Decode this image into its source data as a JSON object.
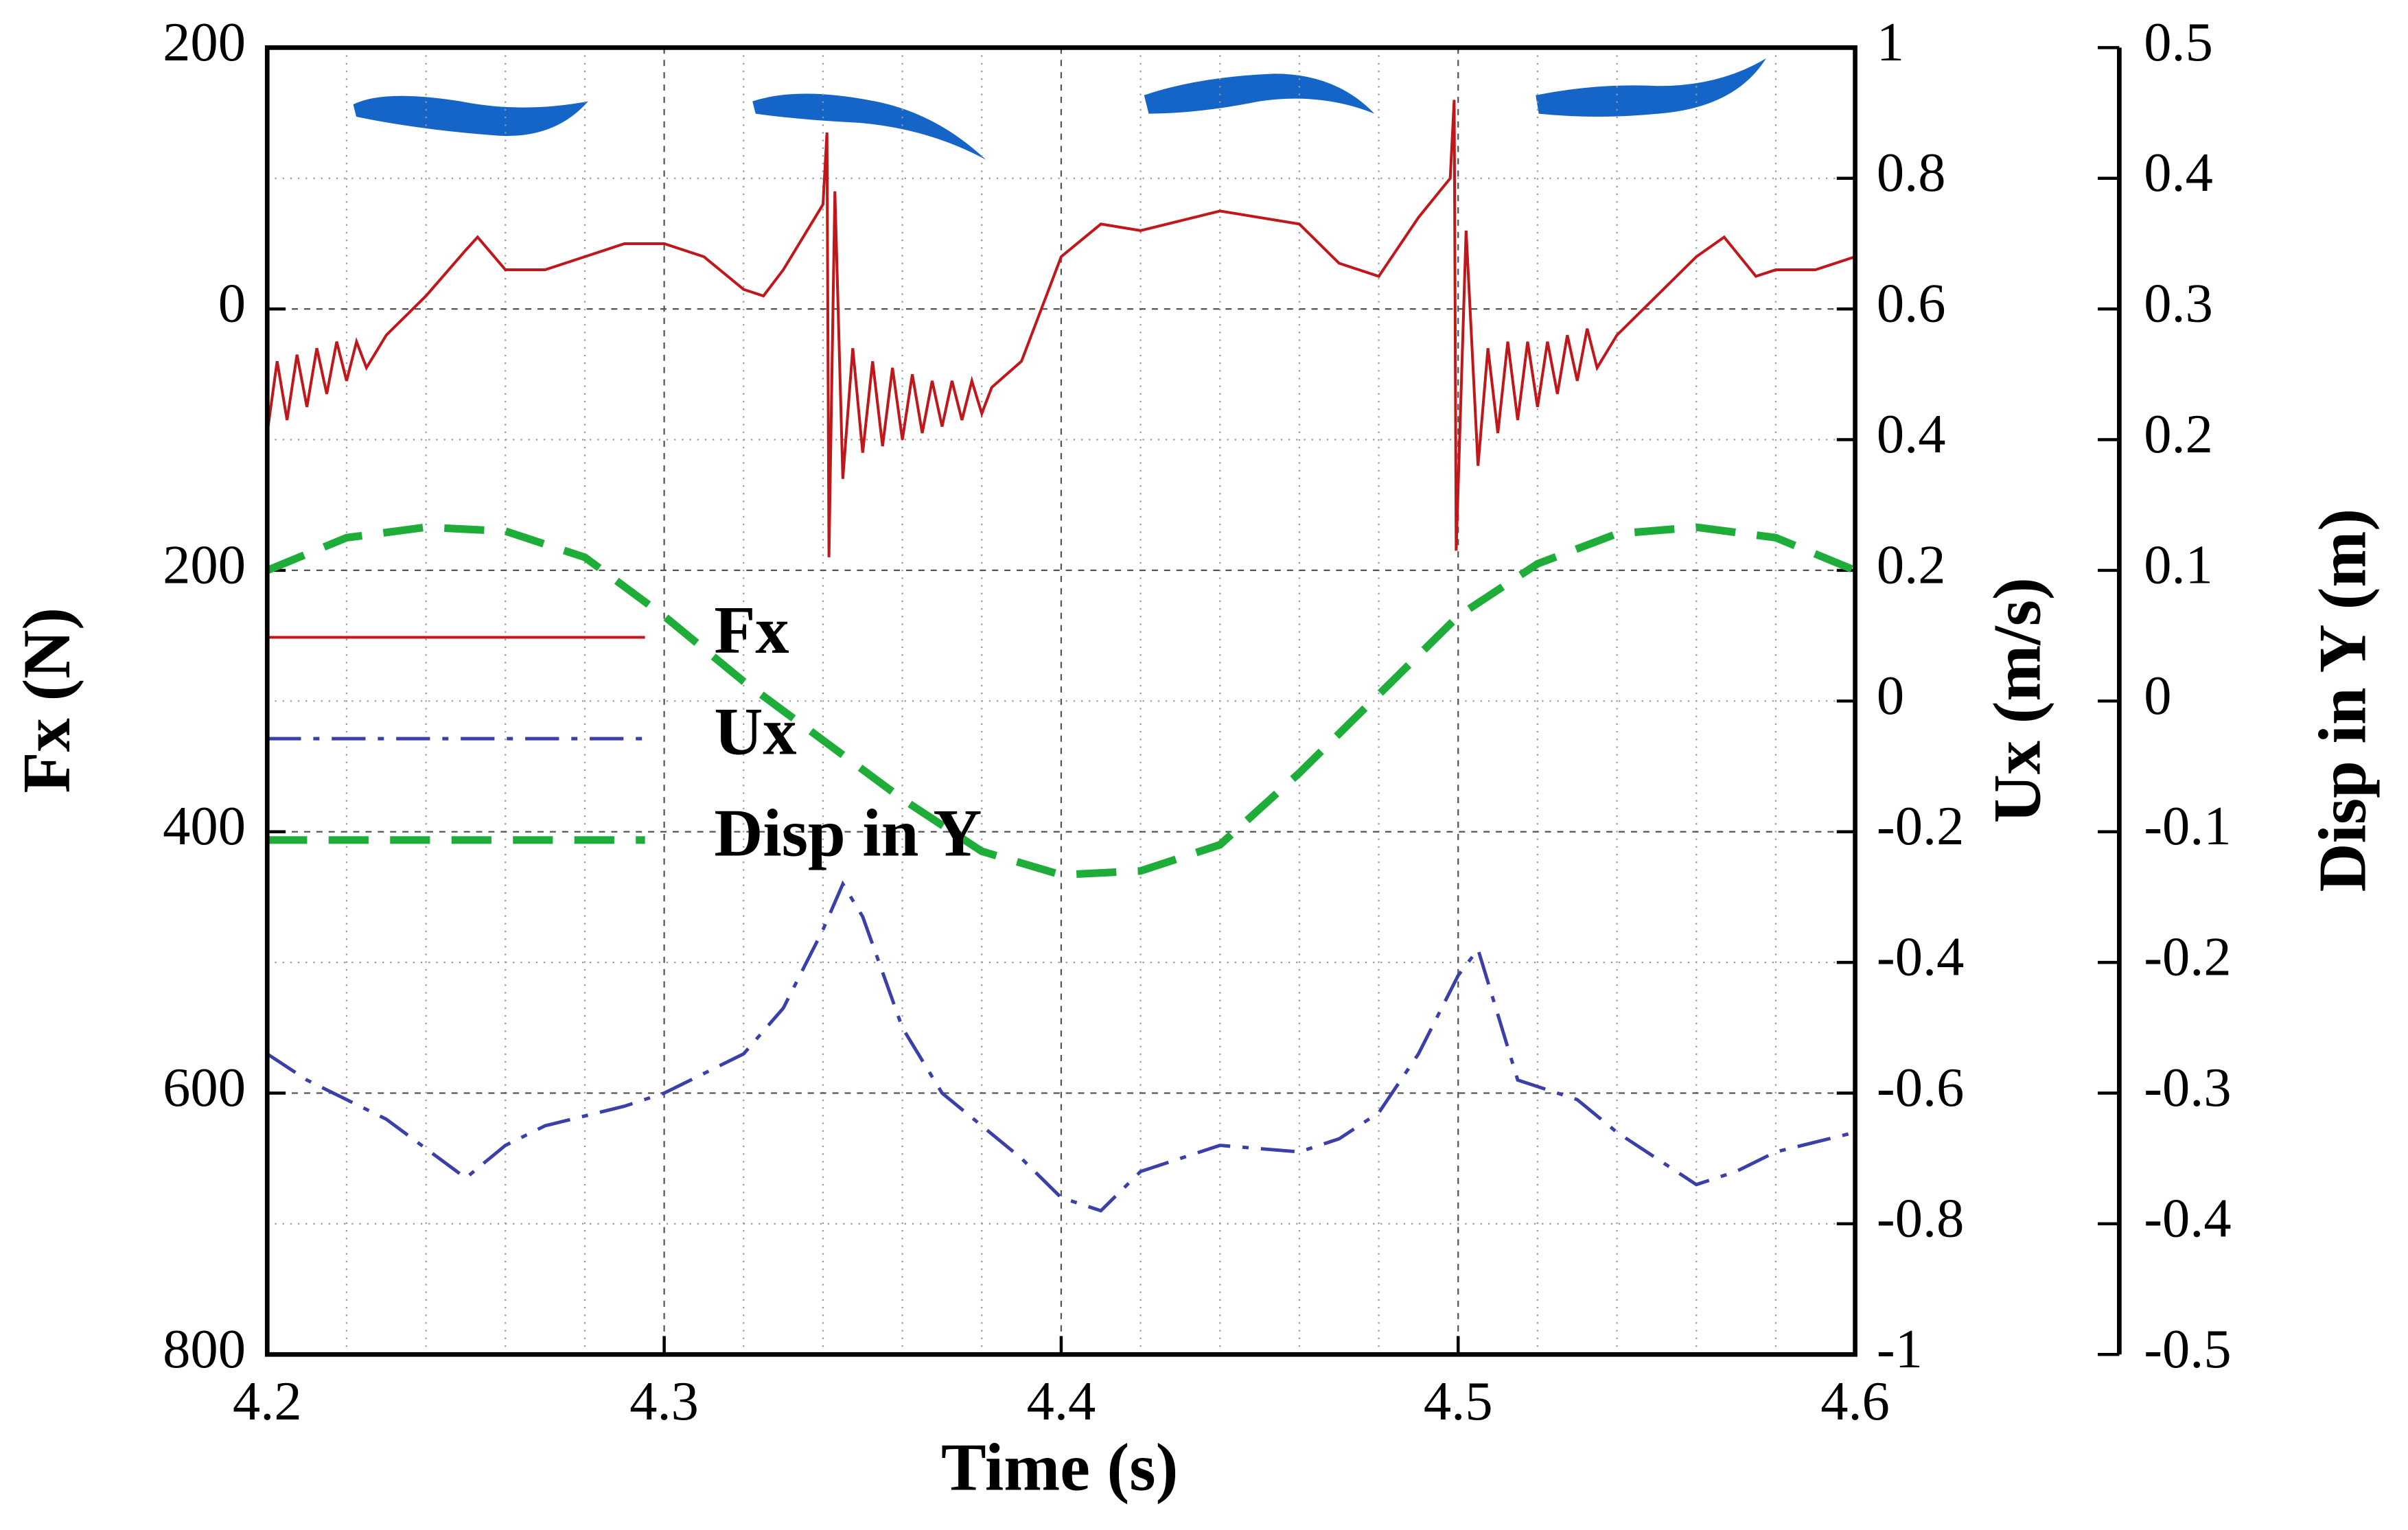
{
  "chart_data": {
    "type": "line",
    "xlabel": "Time (s)",
    "ylabel": "Fx (N)",
    "y2label": "Ux (m/s)",
    "y3label": "Disp in Y (m)",
    "xlim": [
      4.2,
      4.6
    ],
    "xticks": [
      4.2,
      4.3,
      4.4,
      4.5,
      4.6
    ],
    "ylim": [
      -800,
      200
    ],
    "yticks": [
      200,
      0,
      {
        "value": -200,
        "label": "200"
      },
      {
        "value": -400,
        "label": "400"
      },
      {
        "value": -600,
        "label": "600"
      },
      {
        "value": -800,
        "label": "800"
      }
    ],
    "y2lim": [
      -1,
      1
    ],
    "y2ticks": [
      1,
      0.8,
      0.6,
      0.4,
      0.2,
      0,
      -0.2,
      -0.4,
      -0.6,
      -0.8,
      -1
    ],
    "y3lim": [
      -0.5,
      0.5
    ],
    "y3ticks": [
      0.5,
      0.4,
      0.3,
      0.2,
      0.1,
      0,
      -0.1,
      -0.2,
      -0.3,
      -0.4,
      -0.5
    ],
    "grid": true,
    "legend": "left",
    "series": [
      {
        "name": "Fx",
        "color": "#c0171b",
        "style": "solid",
        "axis": "y",
        "x": [
          4.2,
          4.2025,
          4.205,
          4.2075,
          4.21,
          4.2125,
          4.215,
          4.2175,
          4.22,
          4.2225,
          4.225,
          4.23,
          4.24,
          4.25,
          4.253,
          4.26,
          4.27,
          4.28,
          4.29,
          4.3,
          4.31,
          4.32,
          4.325,
          4.33,
          4.34,
          4.341,
          4.3415,
          4.343,
          4.345,
          4.3475,
          4.35,
          4.3525,
          4.355,
          4.3575,
          4.36,
          4.3625,
          4.365,
          4.3675,
          4.37,
          4.3725,
          4.375,
          4.3775,
          4.38,
          4.3825,
          4.39,
          4.4,
          4.41,
          4.42,
          4.44,
          4.46,
          4.47,
          4.48,
          4.49,
          4.498,
          4.499,
          4.4995,
          4.502,
          4.505,
          4.5075,
          4.51,
          4.5125,
          4.515,
          4.5175,
          4.52,
          4.5225,
          4.525,
          4.5275,
          4.53,
          4.5325,
          4.535,
          4.54,
          4.55,
          4.56,
          4.567,
          4.575,
          4.58,
          4.59,
          4.6
        ],
        "values": [
          -95,
          -40,
          -85,
          -35,
          -75,
          -30,
          -65,
          -25,
          -55,
          -25,
          -45,
          -20,
          10,
          45,
          55,
          30,
          30,
          40,
          50,
          50,
          40,
          15,
          10,
          30,
          80,
          135,
          -190,
          90,
          -130,
          -30,
          -110,
          -40,
          -105,
          -45,
          -100,
          -50,
          -95,
          -55,
          -90,
          -55,
          -85,
          -55,
          -80,
          -60,
          -40,
          40,
          65,
          60,
          75,
          65,
          35,
          25,
          70,
          100,
          160,
          -185,
          60,
          -120,
          -30,
          -95,
          -25,
          -85,
          -25,
          -75,
          -25,
          -65,
          -20,
          -55,
          -15,
          -45,
          -20,
          10,
          40,
          55,
          25,
          30,
          30,
          40
        ]
      },
      {
        "name": "Ux",
        "color": "#3b3fa8",
        "style": "dashdot",
        "axis": "y2",
        "x": [
          4.2,
          4.21,
          4.23,
          4.25,
          4.26,
          4.27,
          4.29,
          4.3,
          4.32,
          4.33,
          4.34,
          4.345,
          4.35,
          4.36,
          4.37,
          4.38,
          4.39,
          4.4,
          4.41,
          4.42,
          4.44,
          4.46,
          4.47,
          4.48,
          4.49,
          4.5,
          4.505,
          4.51,
          4.515,
          4.53,
          4.54,
          4.56,
          4.57,
          4.58,
          4.6
        ],
        "values": [
          -0.54,
          -0.58,
          -0.64,
          -0.73,
          -0.68,
          -0.65,
          -0.62,
          -0.6,
          -0.54,
          -0.47,
          -0.35,
          -0.28,
          -0.33,
          -0.5,
          -0.6,
          -0.65,
          -0.7,
          -0.76,
          -0.78,
          -0.72,
          -0.68,
          -0.69,
          -0.67,
          -0.63,
          -0.54,
          -0.42,
          -0.38,
          -0.48,
          -0.58,
          -0.61,
          -0.66,
          -0.74,
          -0.72,
          -0.69,
          -0.66
        ]
      },
      {
        "name": "Disp in Y",
        "color": "#1fad3a",
        "style": "dashed",
        "axis": "y3",
        "x": [
          4.2,
          4.22,
          4.24,
          4.26,
          4.28,
          4.3,
          4.32,
          4.34,
          4.36,
          4.38,
          4.4,
          4.42,
          4.44,
          4.46,
          4.48,
          4.5,
          4.52,
          4.54,
          4.56,
          4.58,
          4.6
        ],
        "values": [
          0.1,
          0.125,
          0.133,
          0.13,
          0.11,
          0.065,
          0.015,
          -0.03,
          -0.075,
          -0.115,
          -0.133,
          -0.13,
          -0.11,
          -0.055,
          0.005,
          0.065,
          0.105,
          0.128,
          0.133,
          0.125,
          0.1
        ]
      }
    ]
  }
}
